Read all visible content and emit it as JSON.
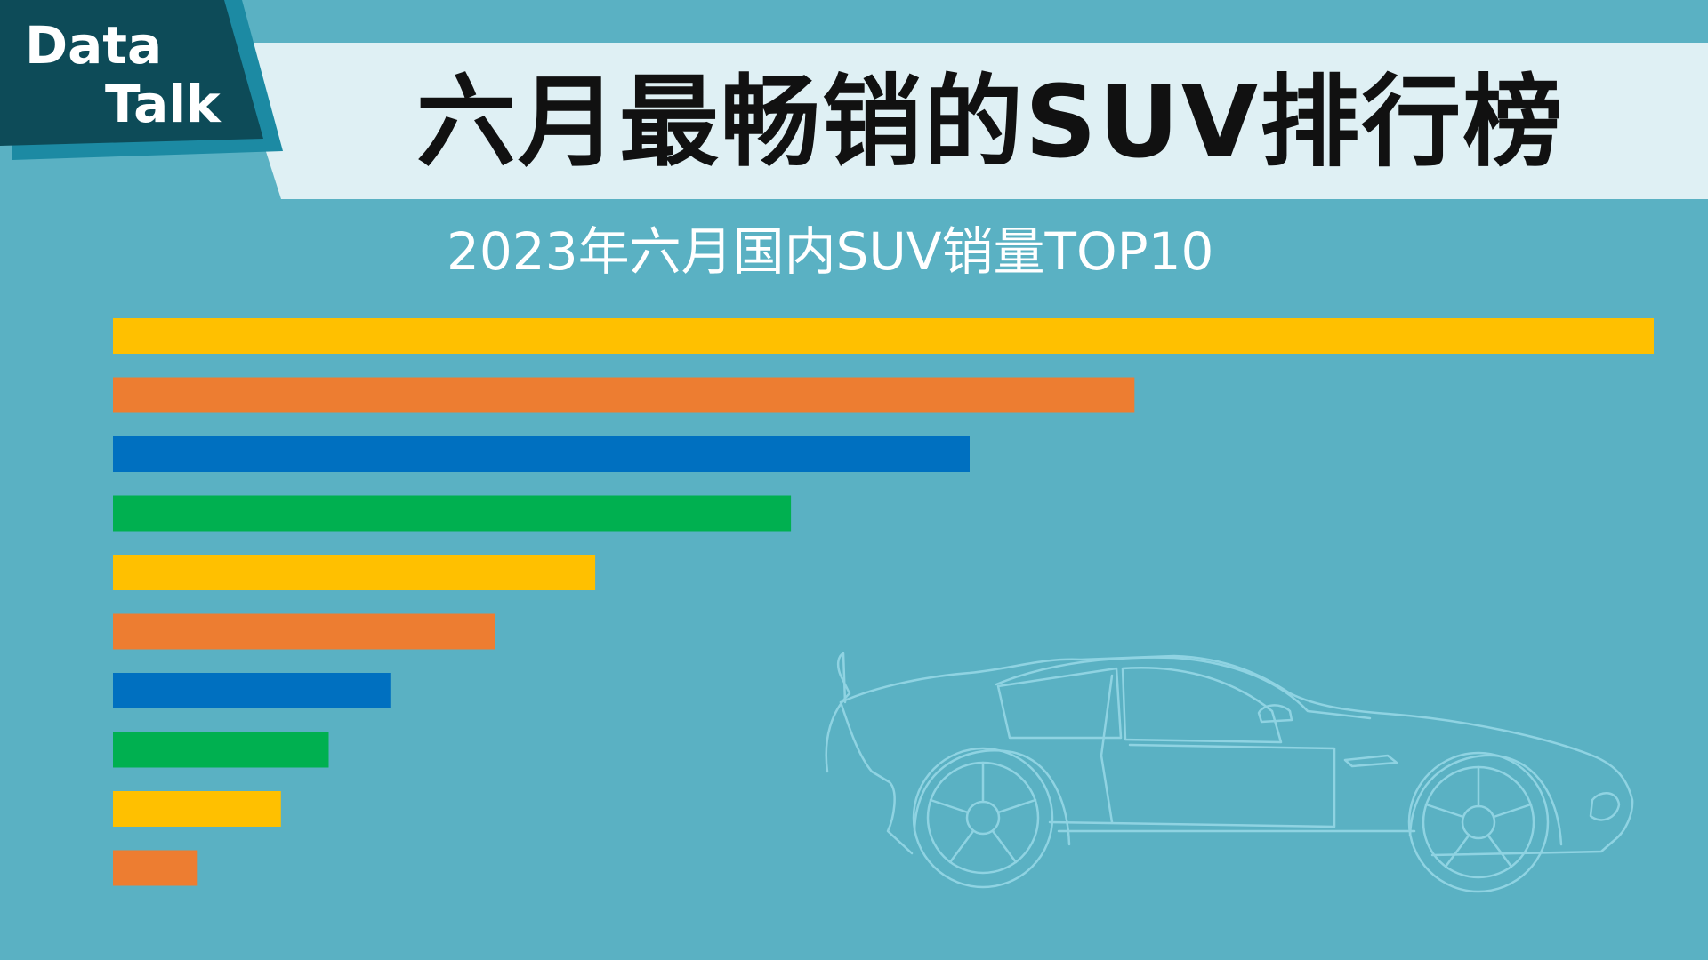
{
  "logo": {
    "line1": "Data",
    "line2": "Talk"
  },
  "title": "六月最畅销的SUV排行榜",
  "subtitle": "2023年六月国内SUV销量TOP10",
  "colors": {
    "background": "#5ab1c3",
    "title_band": "#dff0f4",
    "logo_dark": "#0d4b58",
    "logo_shadow": "#1c8aa3",
    "car_outline": "#8fd3e2"
  },
  "chart_data": {
    "type": "bar",
    "orientation": "horizontal",
    "title": "2023年六月国内SUV销量TOP10",
    "xlabel": "",
    "ylabel": "",
    "xlim": [
      0,
      100
    ],
    "grid": false,
    "legend": "none",
    "categories": [
      "",
      "",
      "",
      "",
      "",
      "",
      "",
      "",
      "",
      ""
    ],
    "values": [
      100,
      66.3,
      55.6,
      44.0,
      31.3,
      24.8,
      18.0,
      14.0,
      10.9,
      5.5
    ],
    "bar_colors": [
      "#ffc000",
      "#ed7d31",
      "#0070c0",
      "#00b050",
      "#ffc000",
      "#ed7d31",
      "#0070c0",
      "#00b050",
      "#ffc000",
      "#ed7d31"
    ]
  }
}
